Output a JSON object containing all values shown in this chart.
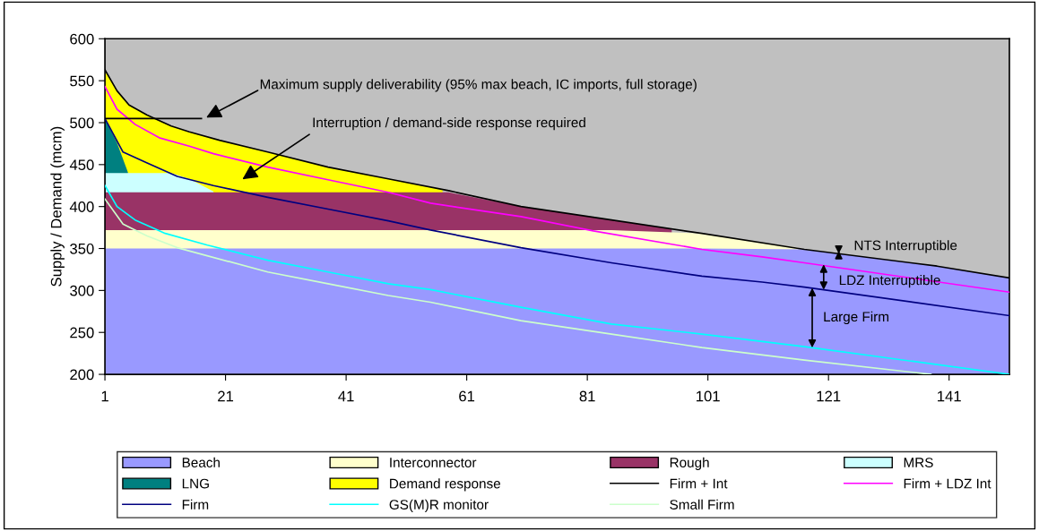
{
  "chart_data": {
    "type": "area",
    "ylabel": "Supply / Demand (mcm)",
    "xlim": [
      1,
      151
    ],
    "xticks": [
      1,
      21,
      41,
      61,
      81,
      101,
      121,
      141
    ],
    "ylim": [
      200,
      600
    ],
    "yticks": [
      200,
      250,
      300,
      350,
      400,
      450,
      500,
      550,
      600
    ],
    "legend": "bottom",
    "series": [
      {
        "name": "Beach",
        "color": "#9999ff",
        "x": [
          1,
          3,
          5,
          8,
          12,
          15,
          20,
          28,
          38,
          48,
          58,
          70,
          85,
          100,
          117,
          139,
          151
        ],
        "values": [
          350,
          350,
          350,
          350,
          350,
          350,
          350,
          350,
          350,
          350,
          350,
          350,
          350,
          350,
          349,
          329,
          315
        ]
      },
      {
        "name": "Interconnector",
        "color": "#ffffcc",
        "x": [
          1,
          3,
          5,
          8,
          12,
          15,
          20,
          28,
          38,
          48,
          58,
          70,
          85,
          100,
          116
        ],
        "values": [
          372,
          372,
          372,
          372,
          372,
          372,
          372,
          372,
          372,
          372,
          372,
          372,
          372,
          368,
          351
        ]
      },
      {
        "name": "Rough",
        "color": "#993366",
        "x": [
          1,
          3,
          5,
          8,
          12,
          15,
          20,
          28,
          38,
          48,
          58,
          70,
          85,
          95
        ],
        "values": [
          417,
          417,
          417,
          417,
          417,
          417,
          417,
          417,
          417,
          417,
          417,
          400,
          384,
          373
        ]
      },
      {
        "name": "MRS",
        "color": "#ccffff",
        "x": [
          1,
          3,
          5,
          8,
          12,
          15,
          19
        ],
        "values": [
          440,
          440,
          440,
          440,
          440,
          433,
          418
        ]
      },
      {
        "name": "LNG",
        "color": "#008080",
        "x": [
          1,
          3,
          4.8
        ],
        "values": [
          505,
          476,
          441
        ]
      },
      {
        "name": "Demand response",
        "color": "#ffff00",
        "x": [
          1,
          3,
          5,
          8,
          12,
          15,
          20,
          28,
          38,
          48,
          57
        ],
        "values": [
          563,
          538,
          521,
          509,
          496,
          489,
          479,
          465,
          447,
          433,
          420
        ]
      },
      {
        "name": "Firm + Int",
        "type": "line",
        "color": "#000000",
        "x": [
          1,
          3,
          5,
          8,
          12,
          15,
          20,
          28,
          38,
          48,
          58,
          70,
          85,
          100,
          117,
          139,
          151
        ],
        "values": [
          563,
          538,
          521,
          509,
          496,
          489,
          479,
          465,
          447,
          433,
          419,
          400,
          384,
          368,
          349,
          329,
          315
        ]
      },
      {
        "name": "Firm + LDZ Int",
        "type": "line",
        "color": "#ff00ff",
        "x": [
          1,
          3,
          6,
          10,
          15,
          19,
          28,
          38,
          48,
          55,
          70,
          82,
          100,
          110,
          117,
          151
        ],
        "values": [
          543,
          516,
          498,
          482,
          472,
          463,
          447,
          432,
          417,
          404,
          388,
          371,
          349,
          340,
          333,
          298
        ]
      },
      {
        "name": "Firm",
        "type": "line",
        "color": "#000080",
        "x": [
          1,
          4,
          8,
          13,
          19,
          28,
          38,
          48,
          55,
          70,
          85,
          100,
          110,
          117,
          151
        ],
        "values": [
          505,
          465,
          452,
          436,
          425,
          411,
          397,
          383,
          372,
          351,
          333,
          317,
          310,
          304,
          270
        ]
      },
      {
        "name": "GS(M)R monitor",
        "type": "line",
        "color": "#00ffff",
        "x": [
          1,
          3,
          6,
          11,
          18,
          28,
          38,
          48,
          55,
          70,
          85,
          100,
          117,
          151
        ],
        "values": [
          425,
          400,
          384,
          368,
          354,
          336,
          322,
          308,
          301,
          280,
          260,
          248,
          233,
          200
        ]
      },
      {
        "name": "Small Firm",
        "type": "line",
        "color": "#ccffcc",
        "x": [
          1,
          4,
          8,
          13,
          28,
          38,
          48,
          55,
          70,
          85,
          100,
          117,
          138
        ],
        "values": [
          409,
          379,
          365,
          351,
          322,
          308,
          294,
          286,
          264,
          248,
          232,
          217,
          200
        ]
      },
      {
        "type": "line",
        "color": "#000000",
        "x": [
          1,
          17
        ],
        "values": [
          505,
          505
        ]
      }
    ],
    "annotations": [
      "Maximum supply deliverability (95% max beach, IC imports, full storage)",
      "Interruption / demand-side response required",
      {
        "text": "NTS Interruptible",
        "x": 122.7,
        "y": 347
      },
      {
        "text": "LDZ Interruptible",
        "x": 120.2,
        "y": 331
      },
      {
        "text": "Large Firm",
        "x": 118.3,
        "y": 303
      }
    ]
  }
}
